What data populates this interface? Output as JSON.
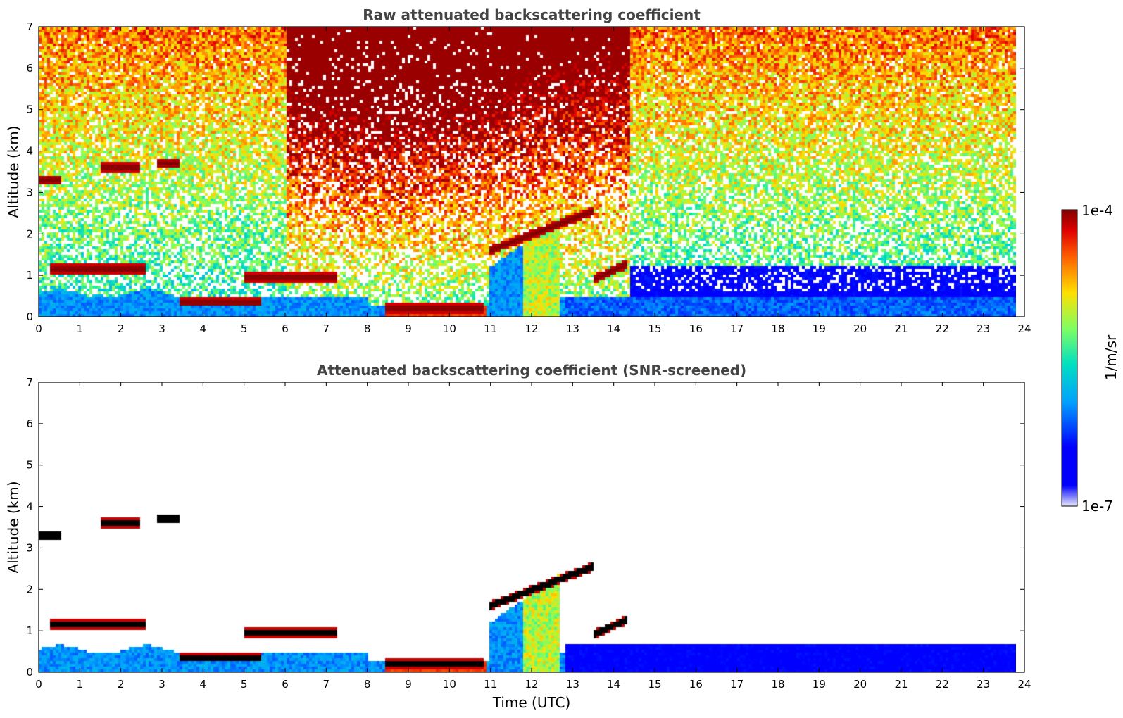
{
  "chart_data": [
    {
      "type": "heatmap",
      "title": "Raw attenuated backscattering coefficient",
      "xlabel": "",
      "ylabel": "Altitude (km)",
      "xlim": [
        0,
        24
      ],
      "ylim": [
        0,
        7
      ],
      "x_ticks": [
        "0",
        "1",
        "2",
        "3",
        "4",
        "5",
        "6",
        "7",
        "8",
        "9",
        "10",
        "11",
        "12",
        "13",
        "14",
        "15",
        "16",
        "17",
        "18",
        "19",
        "20",
        "21",
        "22",
        "23",
        "24"
      ],
      "y_ticks": [
        "0",
        "1",
        "2",
        "3",
        "4",
        "5",
        "6",
        "7"
      ],
      "data_end_time": 23.8,
      "features": [
        {
          "kind": "cloud_layer",
          "t_start": 0.0,
          "t_end": 0.55,
          "altitude_km": 3.3
        },
        {
          "kind": "cloud_layer",
          "t_start": 1.5,
          "t_end": 2.5,
          "altitude_km": 3.6
        },
        {
          "kind": "cloud_layer",
          "t_start": 2.9,
          "t_end": 3.4,
          "altitude_km": 3.7
        },
        {
          "kind": "boundary_layer_top",
          "t_start": 0.3,
          "t_end": 2.6,
          "altitude_km": 1.15
        },
        {
          "kind": "boundary_layer_top",
          "t_start": 3.4,
          "t_end": 5.4,
          "altitude_km": 0.35
        },
        {
          "kind": "boundary_layer_top",
          "t_start": 5.0,
          "t_end": 7.3,
          "altitude_km": 0.95
        },
        {
          "kind": "boundary_layer_top",
          "t_start": 8.4,
          "t_end": 10.8,
          "altitude_km": 0.2
        },
        {
          "kind": "cloud_layer",
          "t_start": 11.0,
          "t_end": 13.5,
          "altitude_km": 1.9
        },
        {
          "kind": "cloud_layer",
          "t_start": 13.5,
          "t_end": 14.3,
          "altitude_km": 1.2
        }
      ]
    },
    {
      "type": "heatmap",
      "title": "Attenuated backscattering coefficient (SNR-screened)",
      "xlabel": "Time (UTC)",
      "ylabel": "Altitude (km)",
      "xlim": [
        0,
        24
      ],
      "ylim": [
        0,
        7
      ],
      "x_ticks": [
        "0",
        "1",
        "2",
        "3",
        "4",
        "5",
        "6",
        "7",
        "8",
        "9",
        "10",
        "11",
        "12",
        "13",
        "14",
        "15",
        "16",
        "17",
        "18",
        "19",
        "20",
        "21",
        "22",
        "23",
        "24"
      ],
      "y_ticks": [
        "0",
        "1",
        "2",
        "3",
        "4",
        "5",
        "6",
        "7"
      ],
      "data_end_time": 23.8
    }
  ],
  "colorbar": {
    "label": "1/m/sr",
    "max_label": "1e-4",
    "min_label": "1e-7",
    "scale": "log",
    "range": [
      1e-07,
      0.0001
    ],
    "colors": [
      "#eaeafa",
      "#0000ff",
      "#00a0ff",
      "#00e0c0",
      "#80ff60",
      "#ffe000",
      "#ff6000",
      "#e00000",
      "#800000"
    ]
  }
}
